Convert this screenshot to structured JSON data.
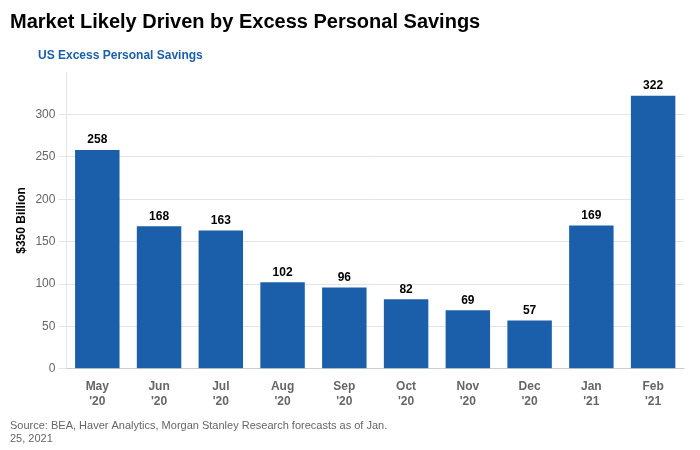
{
  "chart_data": {
    "type": "bar",
    "title": "Market Likely Driven by Excess Personal Savings",
    "ylabel": "$350 Billion",
    "source": "Source: BEA, Haver Analytics, Morgan Stanley Research forecasts as of Jan.\n25, 2021",
    "categories": [
      "May\n'20",
      "Jun\n'20",
      "Jul\n'20",
      "Aug\n'20",
      "Sep\n'20",
      "Oct\n'20",
      "Nov\n'20",
      "Dec\n'20",
      "Jan\n'21",
      "Feb\n'21"
    ],
    "series": [
      {
        "name": "US Excess Personal Savings",
        "color": "#1b5faa",
        "values": [
          258,
          168,
          163,
          102,
          96,
          82,
          69,
          57,
          169,
          322
        ]
      }
    ],
    "ylim": [
      0,
      350
    ],
    "yticks": [
      0,
      50,
      100,
      150,
      200,
      250,
      300
    ],
    "grid": true,
    "legend": "top left",
    "data_labels": true
  }
}
